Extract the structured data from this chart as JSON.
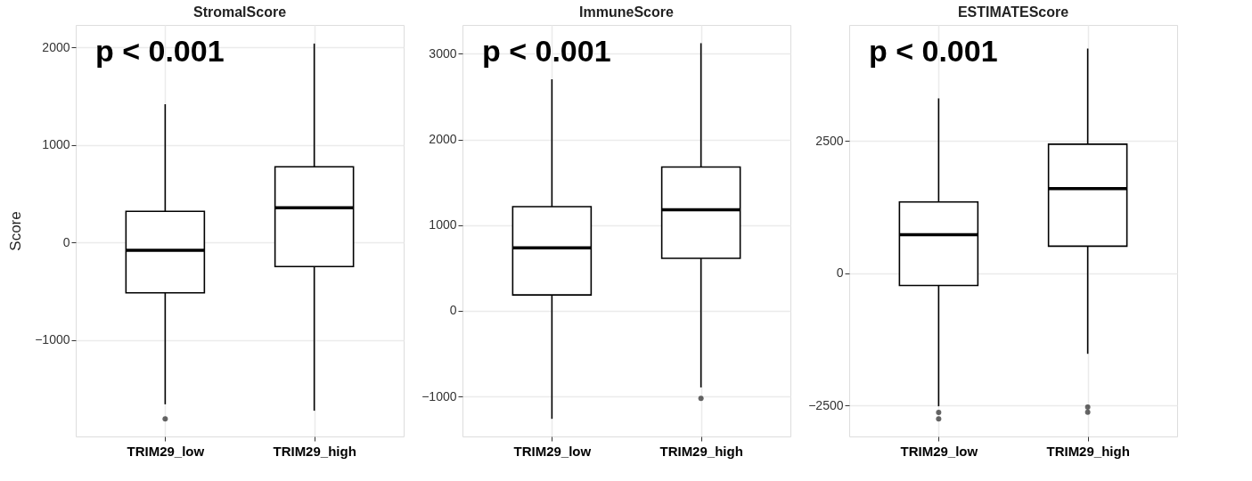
{
  "chart_data": [
    {
      "type": "box",
      "title": "StromalScore",
      "ylabel": "Score",
      "categories": [
        "TRIM29_low",
        "TRIM29_high"
      ],
      "ylim": [
        -1990,
        2230
      ],
      "yticks": [
        -1000,
        0,
        1000,
        2000
      ],
      "grid": true,
      "annotations": [
        "p < 0.001"
      ],
      "boxes": [
        {
          "low": -1660,
          "q1": -517,
          "median": -81,
          "q3": 319,
          "high": 1417,
          "outliers": [
            -1810
          ]
        },
        {
          "low": -1726,
          "q1": -247,
          "median": 355,
          "q3": 776,
          "high": 2039
        }
      ]
    },
    {
      "type": "box",
      "title": "ImmuneScore",
      "categories": [
        "TRIM29_low",
        "TRIM29_high"
      ],
      "ylim": [
        -1466,
        3336
      ],
      "yticks": [
        -1000,
        0,
        1000,
        2000,
        3000
      ],
      "grid": true,
      "annotations": [
        "p < 0.001"
      ],
      "boxes": [
        {
          "low": -1260,
          "q1": 185,
          "median": 736,
          "q3": 1216,
          "high": 2702
        },
        {
          "low": -894,
          "q1": 613,
          "median": 1178,
          "q3": 1678,
          "high": 3123,
          "outliers": [
            -1021
          ]
        }
      ]
    },
    {
      "type": "box",
      "title": "ESTIMATEScore",
      "categories": [
        "TRIM29_low",
        "TRIM29_high"
      ],
      "ylim": [
        -3084,
        4687
      ],
      "yticks": [
        -2500,
        0,
        2500
      ],
      "grid": true,
      "annotations": [
        "p < 0.001"
      ],
      "boxes": [
        {
          "low": -2514,
          "q1": -233,
          "median": 725,
          "q3": 1345,
          "high": 3300,
          "outliers": [
            -2752,
            -2630
          ]
        },
        {
          "low": -1523,
          "q1": 509,
          "median": 1595,
          "q3": 2436,
          "high": 4241,
          "outliers": [
            -2530,
            -2625
          ]
        }
      ]
    }
  ]
}
